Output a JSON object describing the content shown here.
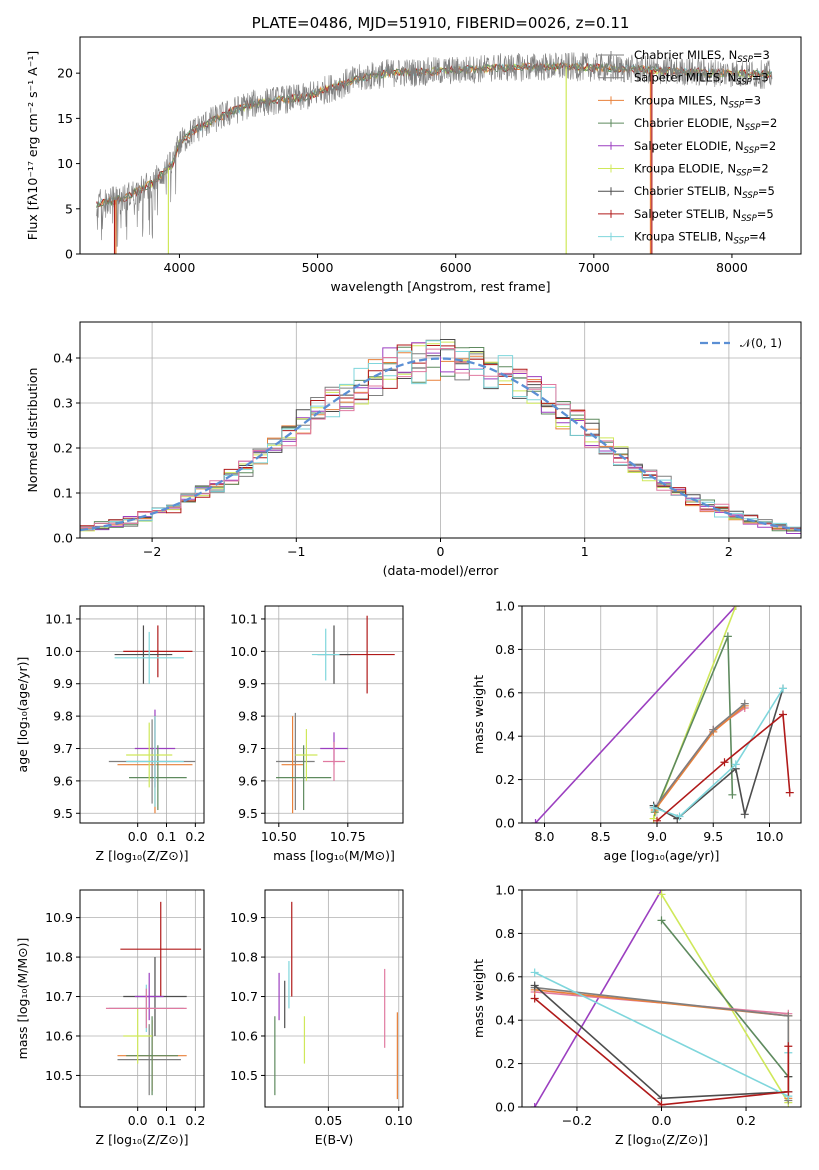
{
  "colors": {
    "chabrier_miles": "#7f7f7f",
    "salpeter_miles": "#7f7f7f",
    "kroupa_miles": "#e8803a",
    "chabrier_elodie": "#5e8a5e",
    "salpeter_elodie": "#9b3fc0",
    "kroupa_elodie": "#cfe85a",
    "chabrier_stelib": "#4d4d4d",
    "salpeter_stelib": "#b01a1a",
    "kroupa_stelib": "#7fd6dc",
    "hist_pink": "#e07aa0",
    "normal": "#5b8fd4"
  },
  "chart_data": [
    {
      "type": "line",
      "title": "PLATE=0486, MJD=51910, FIBERID=0026, z=0.11",
      "xlabel": "wavelength [Angstrom, rest frame]",
      "ylabel": "Flux [fλ10⁻¹⁷ erg cm⁻² s⁻¹ A⁻¹]",
      "xlim": [
        3280,
        8500
      ],
      "ylim": [
        0,
        24
      ],
      "xticks": [
        "4000",
        "5000",
        "6000",
        "7000",
        "8000"
      ],
      "yticks": [
        "0",
        "5",
        "10",
        "15",
        "20"
      ],
      "legend_position": "top-right",
      "legend": [
        {
          "label": "Chabrier MILES, N",
          "sub": "SSP",
          "tail": "=3",
          "color_key": "chabrier_miles"
        },
        {
          "label": "Salpeter MILES, N",
          "sub": "SSP",
          "tail": "=3",
          "color_key": "salpeter_miles"
        },
        {
          "label": "Kroupa MILES, N",
          "sub": "SSP",
          "tail": "=3",
          "color_key": "kroupa_miles"
        },
        {
          "label": "Chabrier ELODIE, N",
          "sub": "SSP",
          "tail": "=2",
          "color_key": "chabrier_elodie"
        },
        {
          "label": "Salpeter ELODIE, N",
          "sub": "SSP",
          "tail": "=2",
          "color_key": "salpeter_elodie"
        },
        {
          "label": "Kroupa ELODIE, N",
          "sub": "SSP",
          "tail": "=2",
          "color_key": "kroupa_elodie"
        },
        {
          "label": "Chabrier STELIB, N",
          "sub": "SSP",
          "tail": "=5",
          "color_key": "chabrier_stelib"
        },
        {
          "label": "Salpeter STELIB, N",
          "sub": "SSP",
          "tail": "=5",
          "color_key": "salpeter_stelib"
        },
        {
          "label": "Kroupa STELIB, N",
          "sub": "SSP",
          "tail": "=4",
          "color_key": "kroupa_stelib"
        }
      ],
      "continuum": [
        [
          3400,
          5.5
        ],
        [
          3600,
          6.2
        ],
        [
          3800,
          7.8
        ],
        [
          3950,
          10.0
        ],
        [
          4000,
          12.2
        ],
        [
          4100,
          13.6
        ],
        [
          4200,
          14.5
        ],
        [
          4300,
          15.2
        ],
        [
          4500,
          16.5
        ],
        [
          4700,
          17.0
        ],
        [
          4900,
          17.3
        ],
        [
          5100,
          18.4
        ],
        [
          5300,
          19.4
        ],
        [
          5500,
          20.0
        ],
        [
          5700,
          20.1
        ],
        [
          6000,
          20.3
        ],
        [
          6300,
          20.6
        ],
        [
          6600,
          20.7
        ],
        [
          6900,
          20.7
        ],
        [
          7200,
          20.5
        ],
        [
          7500,
          20.3
        ],
        [
          7800,
          20.1
        ],
        [
          8000,
          20.0
        ],
        [
          8300,
          19.8
        ]
      ],
      "spikes": [
        [
          3530,
          0,
          "salpeter_stelib"
        ],
        [
          3540,
          0,
          "kroupa_miles"
        ],
        [
          3920,
          0,
          "kroupa_elodie"
        ],
        [
          6800,
          0,
          "kroupa_elodie"
        ],
        [
          7410,
          0,
          "kroupa_miles"
        ],
        [
          7420,
          0,
          "salpeter_stelib"
        ]
      ]
    },
    {
      "type": "step",
      "xlabel": "(data-model)/error",
      "ylabel": "Normed distribution",
      "xlim": [
        -2.5,
        2.5
      ],
      "ylim": [
        0,
        0.48
      ],
      "xticks": [
        -2,
        -1,
        0,
        1,
        2
      ],
      "xtick_labels": [
        "−2",
        "−1",
        "0",
        "1",
        "2"
      ],
      "yticks": [
        "0.0",
        "0.1",
        "0.2",
        "0.3",
        "0.4"
      ],
      "legend_label": "𝒩(0, 1)",
      "legend_position": "top-right",
      "bin_width": 0.1,
      "series_color_keys": [
        "chabrier_miles",
        "kroupa_miles",
        "chabrier_elodie",
        "salpeter_elodie",
        "kroupa_elodie",
        "chabrier_stelib",
        "salpeter_stelib",
        "kroupa_stelib",
        "hist_pink"
      ]
    },
    {
      "type": "errorbar",
      "xlabel": "Z [log₁₀(Z/Z⊙)]",
      "ylabel": "age  [log₁₀(age/yr)]",
      "xlim": [
        -0.2,
        0.23
      ],
      "ylim": [
        9.47,
        10.14
      ],
      "xticks": [
        "0.0",
        "0.1",
        "0.2"
      ],
      "yticks": [
        "9.5",
        "9.6",
        "9.7",
        "9.8",
        "9.9",
        "10.0",
        "10.1"
      ],
      "points": [
        {
          "x": 0.07,
          "y": 10.0,
          "xe": 0.12,
          "ye": 0.08,
          "c": "salpeter_stelib"
        },
        {
          "x": 0.02,
          "y": 9.99,
          "xe": 0.1,
          "ye": 0.09,
          "c": "chabrier_stelib"
        },
        {
          "x": 0.04,
          "y": 9.98,
          "xe": 0.12,
          "ye": 0.08,
          "c": "kroupa_stelib"
        },
        {
          "x": 0.06,
          "y": 9.7,
          "xe": 0.07,
          "ye": 0.12,
          "c": "salpeter_elodie"
        },
        {
          "x": 0.05,
          "y": 9.66,
          "xe": 0.15,
          "ye": 0.13,
          "c": "salpeter_miles"
        },
        {
          "x": 0.06,
          "y": 9.65,
          "xe": 0.13,
          "ye": 0.15,
          "c": "kroupa_miles"
        },
        {
          "x": 0.07,
          "y": 9.61,
          "xe": 0.1,
          "ye": 0.1,
          "c": "chabrier_elodie"
        },
        {
          "x": 0.04,
          "y": 9.68,
          "xe": 0.08,
          "ye": 0.1,
          "c": "kroupa_elodie"
        },
        {
          "x": 0.06,
          "y": 9.66,
          "xe": 0.1,
          "ye": 0.14,
          "c": "kroupa_stelib"
        }
      ]
    },
    {
      "type": "errorbar",
      "xlabel": "mass [log₁₀(M/M⊙)]",
      "xlim": [
        10.45,
        10.95
      ],
      "ylim": [
        9.47,
        10.14
      ],
      "xticks": [
        "10.50",
        "10.75"
      ],
      "yticks": [
        "9.5",
        "9.6",
        "9.7",
        "9.8",
        "9.9",
        "10.0",
        "10.1"
      ],
      "points": [
        {
          "x": 10.82,
          "y": 9.99,
          "xe": 0.1,
          "ye": 0.12,
          "c": "salpeter_stelib"
        },
        {
          "x": 10.7,
          "y": 9.99,
          "xe": 0.06,
          "ye": 0.09,
          "c": "chabrier_stelib"
        },
        {
          "x": 10.67,
          "y": 9.99,
          "xe": 0.05,
          "ye": 0.08,
          "c": "kroupa_stelib"
        },
        {
          "x": 10.7,
          "y": 9.7,
          "xe": 0.05,
          "ye": 0.05,
          "c": "salpeter_elodie"
        },
        {
          "x": 10.56,
          "y": 9.66,
          "xe": 0.07,
          "ye": 0.15,
          "c": "salpeter_miles"
        },
        {
          "x": 10.55,
          "y": 9.65,
          "xe": 0.04,
          "ye": 0.15,
          "c": "kroupa_miles"
        },
        {
          "x": 10.59,
          "y": 9.61,
          "xe": 0.1,
          "ye": 0.1,
          "c": "chabrier_elodie"
        },
        {
          "x": 10.6,
          "y": 9.68,
          "xe": 0.04,
          "ye": 0.08,
          "c": "kroupa_elodie"
        },
        {
          "x": 10.7,
          "y": 9.66,
          "xe": 0.04,
          "ye": 0.06,
          "c": "hist_pink"
        }
      ]
    },
    {
      "type": "line",
      "xlabel": "age  [log₁₀(age/yr)]",
      "ylabel": "mass weight",
      "xlim": [
        7.8,
        10.28
      ],
      "ylim": [
        0,
        1
      ],
      "xticks": [
        "8.0",
        "8.5",
        "9.0",
        "9.5",
        "10.0"
      ],
      "yticks": [
        "0.0",
        "0.2",
        "0.4",
        "0.6",
        "0.8",
        "1.0"
      ],
      "series": [
        {
          "c": "salpeter_elodie",
          "pts": [
            [
              7.92,
              0.0
            ],
            [
              9.7,
              1.0
            ]
          ]
        },
        {
          "c": "kroupa_elodie",
          "pts": [
            [
              8.97,
              0.02
            ],
            [
              9.7,
              1.0
            ]
          ]
        },
        {
          "c": "chabrier_elodie",
          "pts": [
            [
              8.98,
              0.05
            ],
            [
              9.63,
              0.86
            ],
            [
              9.67,
              0.13
            ]
          ]
        },
        {
          "c": "hist_pink",
          "pts": [
            [
              8.98,
              0.07
            ],
            [
              9.5,
              0.43
            ],
            [
              9.78,
              0.53
            ]
          ]
        },
        {
          "c": "kroupa_miles",
          "pts": [
            [
              8.98,
              0.06
            ],
            [
              9.5,
              0.42
            ],
            [
              9.78,
              0.54
            ]
          ]
        },
        {
          "c": "salpeter_miles",
          "pts": [
            [
              8.98,
              0.07
            ],
            [
              9.5,
              0.43
            ],
            [
              9.78,
              0.55
            ]
          ]
        },
        {
          "c": "chabrier_stelib",
          "pts": [
            [
              8.97,
              0.08
            ],
            [
              9.18,
              0.02
            ],
            [
              9.7,
              0.25
            ],
            [
              9.78,
              0.04
            ],
            [
              10.12,
              0.62
            ]
          ]
        },
        {
          "c": "kroupa_stelib",
          "pts": [
            [
              8.97,
              0.07
            ],
            [
              9.2,
              0.03
            ],
            [
              9.7,
              0.27
            ],
            [
              10.12,
              0.62
            ]
          ]
        },
        {
          "c": "salpeter_stelib",
          "pts": [
            [
              9.0,
              0.01
            ],
            [
              9.6,
              0.28
            ],
            [
              10.12,
              0.5
            ],
            [
              10.18,
              0.14
            ]
          ]
        }
      ]
    },
    {
      "type": "errorbar",
      "xlabel": "Z [log₁₀(Z/Z⊙)]",
      "ylabel": "mass [log₁₀(M/M⊙)]",
      "xlim": [
        -0.2,
        0.23
      ],
      "ylim": [
        10.42,
        10.97
      ],
      "xticks": [
        "0.0",
        "0.1",
        "0.2"
      ],
      "yticks": [
        "10.5",
        "10.6",
        "10.7",
        "10.8",
        "10.9"
      ],
      "points": [
        {
          "x": 0.08,
          "y": 10.82,
          "xe": 0.14,
          "ye": 0.12,
          "c": "salpeter_stelib"
        },
        {
          "x": 0.06,
          "y": 10.7,
          "xe": 0.11,
          "ye": 0.1,
          "c": "chabrier_stelib"
        },
        {
          "x": 0.03,
          "y": 10.67,
          "xe": 0.13,
          "ye": 0.06,
          "c": "kroupa_stelib"
        },
        {
          "x": 0.04,
          "y": 10.7,
          "xe": 0.05,
          "ye": 0.06,
          "c": "salpeter_elodie"
        },
        {
          "x": 0.04,
          "y": 10.54,
          "xe": 0.11,
          "ye": 0.09,
          "c": "salpeter_miles"
        },
        {
          "x": 0.05,
          "y": 10.55,
          "xe": 0.12,
          "ye": 0.09,
          "c": "kroupa_miles"
        },
        {
          "x": 0.05,
          "y": 10.55,
          "xe": 0.09,
          "ye": 0.1,
          "c": "chabrier_elodie"
        },
        {
          "x": 0.0,
          "y": 10.6,
          "xe": 0.05,
          "ye": 0.07,
          "c": "kroupa_elodie"
        },
        {
          "x": 0.03,
          "y": 10.67,
          "xe": 0.14,
          "ye": 0.05,
          "c": "hist_pink"
        }
      ]
    },
    {
      "type": "errorbar",
      "xlabel": "E(B-V)",
      "xlim": [
        0.005,
        0.103
      ],
      "ylim": [
        10.42,
        10.97
      ],
      "xticks": [
        "0.05",
        "0.10"
      ],
      "yticks": [
        "10.5",
        "10.6",
        "10.7",
        "10.8",
        "10.9"
      ],
      "points": [
        {
          "x": 0.024,
          "y": 10.82,
          "xe": 0,
          "ye": 0.12,
          "c": "salpeter_stelib"
        },
        {
          "x": 0.012,
          "y": 10.55,
          "xe": 0,
          "ye": 0.1,
          "c": "chabrier_elodie"
        },
        {
          "x": 0.015,
          "y": 10.7,
          "xe": 0,
          "ye": 0.06,
          "c": "salpeter_elodie"
        },
        {
          "x": 0.019,
          "y": 10.68,
          "xe": 0,
          "ye": 0.06,
          "c": "chabrier_stelib"
        },
        {
          "x": 0.022,
          "y": 10.73,
          "xe": 0,
          "ye": 0.06,
          "c": "kroupa_stelib"
        },
        {
          "x": 0.033,
          "y": 10.59,
          "xe": 0,
          "ye": 0.06,
          "c": "kroupa_elodie"
        },
        {
          "x": 0.09,
          "y": 10.67,
          "xe": 0,
          "ye": 0.1,
          "c": "hist_pink"
        },
        {
          "x": 0.099,
          "y": 10.55,
          "xe": 0,
          "ye": 0.11,
          "c": "kroupa_miles"
        }
      ]
    },
    {
      "type": "line",
      "xlabel": "Z [log₁₀(Z/Z⊙)]",
      "ylabel": "mass weight",
      "xlim": [
        -0.33,
        0.33
      ],
      "ylim": [
        0,
        1
      ],
      "xticks": [
        -0.2,
        0.0,
        0.2
      ],
      "xtick_labels": [
        "−0.2",
        "0.0",
        "0.2"
      ],
      "yticks": [
        "0.0",
        "0.2",
        "0.4",
        "0.6",
        "0.8",
        "1.0"
      ],
      "series": [
        {
          "c": "salpeter_elodie",
          "pts": [
            [
              -0.3,
              0.0
            ],
            [
              0.0,
              1.0
            ]
          ]
        },
        {
          "c": "kroupa_elodie",
          "pts": [
            [
              0.0,
              0.98
            ],
            [
              0.3,
              0.02
            ]
          ]
        },
        {
          "c": "chabrier_elodie",
          "pts": [
            [
              0.0,
              0.86
            ],
            [
              0.3,
              0.14
            ]
          ]
        },
        {
          "c": "hist_pink",
          "pts": [
            [
              -0.3,
              0.53
            ],
            [
              0.3,
              0.43
            ]
          ]
        },
        {
          "c": "kroupa_miles",
          "pts": [
            [
              -0.3,
              0.54
            ],
            [
              0.3,
              0.42
            ],
            [
              0.3,
              0.04
            ]
          ]
        },
        {
          "c": "salpeter_miles",
          "pts": [
            [
              -0.3,
              0.55
            ],
            [
              0.3,
              0.42
            ],
            [
              0.3,
              0.03
            ]
          ]
        },
        {
          "c": "chabrier_stelib",
          "pts": [
            [
              -0.3,
              0.56
            ],
            [
              0.0,
              0.04
            ],
            [
              0.3,
              0.07
            ],
            [
              0.3,
              0.14
            ]
          ]
        },
        {
          "c": "kroupa_stelib",
          "pts": [
            [
              -0.3,
              0.62
            ],
            [
              0.3,
              0.05
            ],
            [
              0.3,
              0.25
            ]
          ]
        },
        {
          "c": "salpeter_stelib",
          "pts": [
            [
              -0.3,
              0.5
            ],
            [
              0.0,
              0.01
            ],
            [
              0.3,
              0.07
            ],
            [
              0.3,
              0.28
            ]
          ]
        }
      ]
    }
  ]
}
